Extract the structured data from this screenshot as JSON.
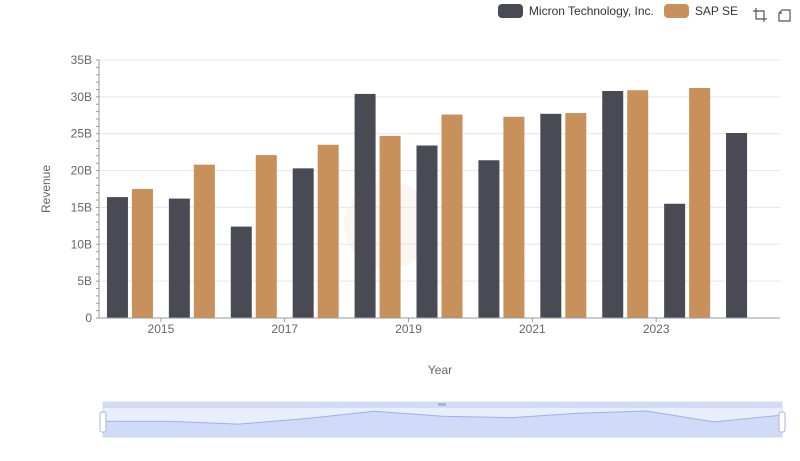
{
  "legend": {
    "items": [
      {
        "label": "Micron Technology, Inc.",
        "color": "#4a4a55"
      },
      {
        "label": "SAP SE",
        "color": "#c8905a"
      }
    ]
  },
  "toolbox": {
    "icons": [
      "zoom-icon",
      "restore-icon"
    ]
  },
  "chart_data": {
    "type": "bar",
    "xlabel": "Year",
    "ylabel": "Revenue",
    "x": [
      2014,
      2015,
      2016,
      2017,
      2018,
      2019,
      2020,
      2021,
      2022,
      2023,
      2024
    ],
    "xtick_labels": [
      "2015",
      "2017",
      "2019",
      "2021",
      "2023"
    ],
    "ytick_labels": [
      "0",
      "5B",
      "10B",
      "15B",
      "20B",
      "25B",
      "30B",
      "35B"
    ],
    "ylim": [
      0,
      35
    ],
    "grid": true,
    "legend_position": "top-right",
    "series": [
      {
        "name": "Micron Technology, Inc.",
        "color": "#4a4a55",
        "values": [
          16.4,
          16.2,
          12.4,
          20.3,
          30.4,
          23.4,
          21.4,
          27.7,
          30.8,
          15.5,
          25.1
        ]
      },
      {
        "name": "SAP SE",
        "color": "#c8905a",
        "values": [
          17.5,
          20.8,
          22.1,
          23.5,
          24.7,
          27.6,
          27.3,
          27.8,
          30.9,
          31.2,
          null
        ]
      }
    ]
  }
}
